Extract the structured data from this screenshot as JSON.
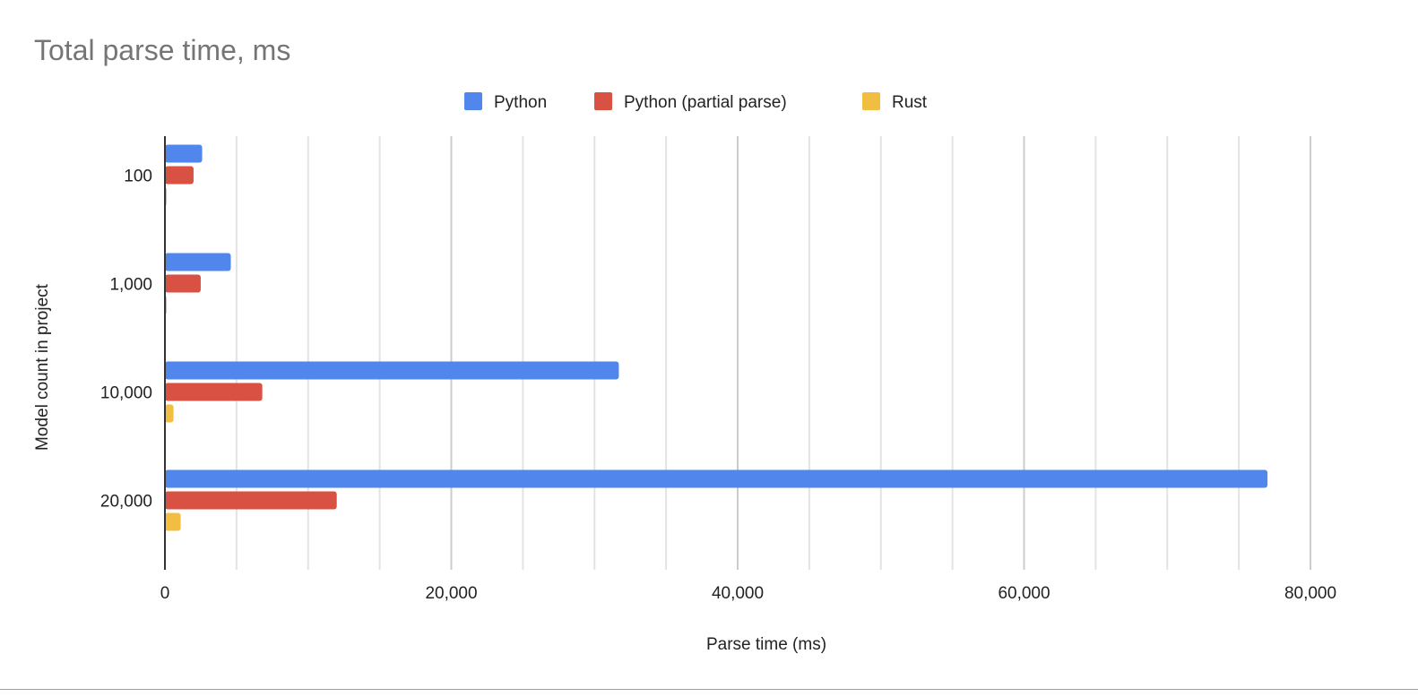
{
  "chart_data": {
    "type": "bar",
    "orientation": "horizontal",
    "title": "Total parse time, ms",
    "xlabel": "Parse time (ms)",
    "ylabel": "Model count in project",
    "categories": [
      "100",
      "1,000",
      "10,000",
      "20,000"
    ],
    "series": [
      {
        "name": "Python",
        "color": "#5186ec",
        "values": [
          2600,
          4600,
          31700,
          77000
        ]
      },
      {
        "name": "Python (partial parse)",
        "color": "#d95142",
        "values": [
          2000,
          2500,
          6800,
          12000
        ]
      },
      {
        "name": "Rust",
        "color": "#f2be42",
        "values": [
          100,
          100,
          600,
          1100
        ]
      }
    ],
    "xlim": [
      0,
      80000
    ],
    "xticks": [
      "0",
      "20,000",
      "40,000",
      "60,000",
      "80,000"
    ],
    "xtick_values": [
      0,
      20000,
      40000,
      60000,
      80000
    ],
    "minor_grid_step": 5000,
    "grid": true,
    "legend": "top-center"
  }
}
